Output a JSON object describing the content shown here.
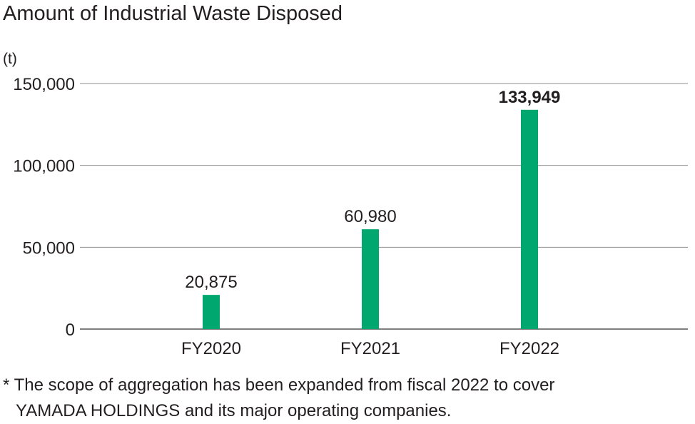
{
  "chart_data": {
    "type": "bar",
    "title": "Amount of Industrial Waste Disposed",
    "unit": "(t)",
    "categories": [
      "FY2020",
      "FY2021",
      "FY2022"
    ],
    "values": [
      20875,
      60980,
      133949
    ],
    "value_labels": [
      "20,875",
      "60,980",
      "133,949"
    ],
    "bold_value_index": 2,
    "yticks": [
      0,
      50000,
      100000,
      150000
    ],
    "ytick_labels": [
      "0",
      "50,000",
      "100,000",
      "150,000"
    ],
    "ylim": [
      0,
      150000
    ],
    "grid": true,
    "legend": "none",
    "bar_color": "#00a870",
    "grid_color": "#8c8c8c",
    "footnote": "* The scope of aggregation has been expanded from fiscal 2022 to cover YAMADA HOLDINGS and its major operating companies.",
    "footnote_lines": [
      "* The scope of aggregation has been expanded from fiscal 2022 to cover",
      "YAMADA HOLDINGS and its major operating companies."
    ]
  }
}
